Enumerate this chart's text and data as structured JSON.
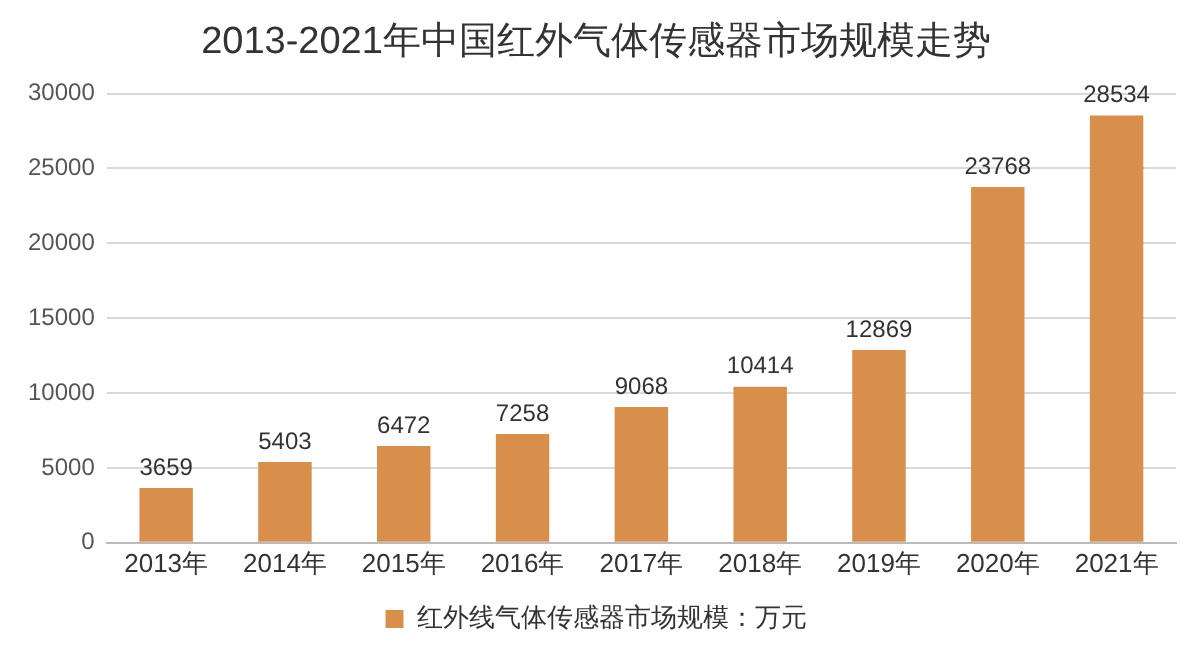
{
  "chart_data": {
    "type": "bar",
    "title": "2013-2021年中国红外气体传感器市场规模走势",
    "categories": [
      "2013年",
      "2014年",
      "2015年",
      "2016年",
      "2017年",
      "2018年",
      "2019年",
      "2020年",
      "2021年"
    ],
    "series": [
      {
        "name": "红外线气体传感器市场规模：万元",
        "color": "#d98f4c",
        "values": [
          3659,
          5403,
          6472,
          7258,
          9068,
          10414,
          12869,
          23768,
          28534
        ]
      }
    ],
    "ylim": [
      0,
      30000
    ],
    "yticks": [
      0,
      5000,
      10000,
      15000,
      20000,
      25000,
      30000
    ],
    "grid": "y",
    "legend": "bottom",
    "data_labels": true
  }
}
